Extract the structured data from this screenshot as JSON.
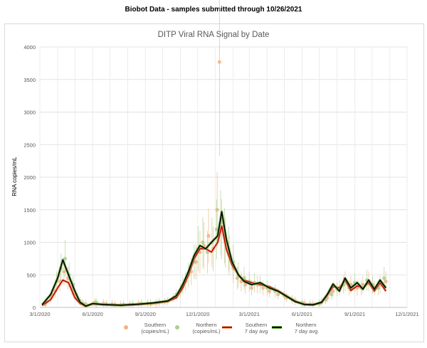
{
  "header": {
    "title": "Biobot Data - samples submitted through 10/26/2021"
  },
  "chart_data": {
    "type": "scatter",
    "title": "DITP Viral RNA Signal by Date",
    "ylabel": "RNA copies/mL",
    "xlabel": "",
    "ylim": [
      0,
      4000
    ],
    "yticks": [
      0,
      500,
      1000,
      1500,
      2000,
      2500,
      3000,
      3500,
      4000
    ],
    "xlim": [
      "2020-03-01",
      "2021-12-01"
    ],
    "xticks": [
      "3/1/2020",
      "6/1/2020",
      "9/1/2020",
      "12/1/2020",
      "3/1/2021",
      "6/1/2021",
      "9/1/2021",
      "12/1/2021"
    ],
    "grid": true,
    "legend": "bottom",
    "colors": {
      "southern_points": "#f4b183",
      "northern_points": "#a9d18e",
      "southern_avg": "#c00000",
      "northern_avg": "#000000",
      "southern_avg_glow": "#f4b183",
      "northern_avg_glow": "#70ad47"
    },
    "series": [
      {
        "name": "Southern (copies/mL)",
        "kind": "points",
        "x": [
          "2020-03-10",
          "2020-03-20",
          "2020-03-28",
          "2020-04-05",
          "2020-04-12",
          "2020-04-19",
          "2020-04-26",
          "2020-05-03",
          "2020-05-10",
          "2020-05-20",
          "2020-06-05",
          "2020-06-20",
          "2020-07-05",
          "2020-07-20",
          "2020-08-05",
          "2020-08-20",
          "2020-09-05",
          "2020-09-20",
          "2020-10-05",
          "2020-10-20",
          "2020-11-01",
          "2020-11-10",
          "2020-11-20",
          "2020-11-28",
          "2020-12-05",
          "2020-12-12",
          "2020-12-20",
          "2020-12-28",
          "2021-01-04",
          "2021-01-08",
          "2021-01-12",
          "2021-01-18",
          "2021-01-25",
          "2021-02-01",
          "2021-02-08",
          "2021-02-15",
          "2021-02-22",
          "2021-03-05",
          "2021-03-15",
          "2021-03-25",
          "2021-04-05",
          "2021-04-20",
          "2021-05-05",
          "2021-05-20",
          "2021-06-05",
          "2021-06-20",
          "2021-07-05",
          "2021-07-15",
          "2021-07-25",
          "2021-08-05",
          "2021-08-15",
          "2021-08-25",
          "2021-09-05",
          "2021-09-15",
          "2021-09-25",
          "2021-10-05",
          "2021-10-15",
          "2021-10-25"
        ],
        "values": [
          50,
          150,
          250,
          400,
          550,
          450,
          300,
          200,
          100,
          50,
          80,
          60,
          50,
          40,
          45,
          55,
          60,
          70,
          90,
          150,
          250,
          400,
          550,
          700,
          850,
          950,
          1100,
          900,
          1500,
          3770,
          1200,
          1000,
          800,
          600,
          450,
          400,
          350,
          300,
          350,
          300,
          250,
          200,
          150,
          100,
          60,
          50,
          80,
          150,
          250,
          300,
          400,
          350,
          300,
          350,
          400,
          300,
          350,
          400
        ]
      },
      {
        "name": "Northern (copies/mL)",
        "kind": "points",
        "x": [
          "2020-03-12",
          "2020-03-22",
          "2020-03-30",
          "2020-04-07",
          "2020-04-14",
          "2020-04-21",
          "2020-04-28",
          "2020-05-05",
          "2020-05-15",
          "2020-06-08",
          "2020-06-25",
          "2020-07-10",
          "2020-07-25",
          "2020-08-10",
          "2020-08-25",
          "2020-09-10",
          "2020-09-25",
          "2020-10-10",
          "2020-10-25",
          "2020-11-05",
          "2020-11-15",
          "2020-11-25",
          "2020-12-02",
          "2020-12-10",
          "2020-12-18",
          "2020-12-26",
          "2021-01-03",
          "2021-01-10",
          "2021-01-17",
          "2021-01-24",
          "2021-02-01",
          "2021-02-10",
          "2021-02-20",
          "2021-03-01",
          "2021-03-10",
          "2021-03-20",
          "2021-04-01",
          "2021-04-15",
          "2021-05-01",
          "2021-05-15",
          "2021-06-01",
          "2021-06-15",
          "2021-07-01",
          "2021-07-12",
          "2021-07-22",
          "2021-08-01",
          "2021-08-12",
          "2021-08-22",
          "2021-09-01",
          "2021-09-12",
          "2021-09-22",
          "2021-10-02",
          "2021-10-12",
          "2021-10-22"
        ],
        "values": [
          80,
          200,
          400,
          600,
          750,
          500,
          350,
          150,
          60,
          70,
          50,
          40,
          45,
          50,
          60,
          55,
          80,
          100,
          200,
          350,
          500,
          700,
          900,
          1000,
          850,
          1000,
          1200,
          1300,
          1100,
          900,
          700,
          500,
          450,
          400,
          380,
          350,
          300,
          250,
          180,
          120,
          70,
          50,
          60,
          120,
          200,
          280,
          350,
          300,
          380,
          300,
          420,
          350,
          300,
          450
        ]
      },
      {
        "name": "Southern 7 day avg",
        "kind": "line",
        "x": [
          "2020-03-05",
          "2020-03-20",
          "2020-04-01",
          "2020-04-10",
          "2020-04-20",
          "2020-05-01",
          "2020-05-10",
          "2020-05-20",
          "2020-06-01",
          "2020-06-20",
          "2020-07-20",
          "2020-08-20",
          "2020-09-15",
          "2020-10-10",
          "2020-10-25",
          "2020-11-05",
          "2020-11-15",
          "2020-11-25",
          "2020-12-05",
          "2020-12-15",
          "2020-12-25",
          "2021-01-05",
          "2021-01-12",
          "2021-01-20",
          "2021-01-30",
          "2021-02-10",
          "2021-02-20",
          "2021-03-05",
          "2021-03-20",
          "2021-04-05",
          "2021-04-20",
          "2021-05-05",
          "2021-05-20",
          "2021-06-05",
          "2021-06-20",
          "2021-07-05",
          "2021-07-15",
          "2021-07-25",
          "2021-08-05",
          "2021-08-15",
          "2021-08-25",
          "2021-09-05",
          "2021-09-15",
          "2021-09-25",
          "2021-10-05",
          "2021-10-15",
          "2021-10-25"
        ],
        "values": [
          30,
          120,
          300,
          420,
          380,
          150,
          60,
          20,
          50,
          40,
          30,
          45,
          60,
          90,
          150,
          300,
          500,
          750,
          900,
          900,
          850,
          1000,
          1250,
          900,
          650,
          500,
          420,
          380,
          350,
          320,
          260,
          180,
          100,
          50,
          40,
          70,
          180,
          320,
          300,
          420,
          260,
          330,
          300,
          380,
          250,
          380,
          250
        ]
      },
      {
        "name": "Northern 7 day avg",
        "kind": "line",
        "x": [
          "2020-03-05",
          "2020-03-20",
          "2020-04-01",
          "2020-04-10",
          "2020-04-20",
          "2020-05-01",
          "2020-05-10",
          "2020-05-20",
          "2020-06-01",
          "2020-06-20",
          "2020-07-20",
          "2020-08-20",
          "2020-09-15",
          "2020-10-10",
          "2020-10-25",
          "2020-11-05",
          "2020-11-15",
          "2020-11-25",
          "2020-12-05",
          "2020-12-15",
          "2020-12-25",
          "2021-01-05",
          "2021-01-12",
          "2021-01-20",
          "2021-01-30",
          "2021-02-10",
          "2021-02-20",
          "2021-03-05",
          "2021-03-20",
          "2021-04-05",
          "2021-04-20",
          "2021-05-05",
          "2021-05-20",
          "2021-06-05",
          "2021-06-20",
          "2021-07-05",
          "2021-07-15",
          "2021-07-25",
          "2021-08-05",
          "2021-08-15",
          "2021-08-25",
          "2021-09-05",
          "2021-09-15",
          "2021-09-25",
          "2021-10-05",
          "2021-10-15",
          "2021-10-25"
        ],
        "values": [
          40,
          200,
          450,
          730,
          500,
          250,
          80,
          20,
          60,
          45,
          35,
          50,
          70,
          100,
          180,
          350,
          550,
          800,
          950,
          900,
          1000,
          1100,
          1470,
          1050,
          700,
          500,
          400,
          350,
          380,
          300,
          250,
          170,
          90,
          45,
          40,
          80,
          200,
          360,
          250,
          450,
          300,
          380,
          280,
          420,
          280,
          420,
          300
        ]
      }
    ]
  },
  "legend": {
    "items": [
      {
        "label_line1": "Southern",
        "label_line2": "(copies/mL)"
      },
      {
        "label_line1": "Northern",
        "label_line2": "(copies/mL)"
      },
      {
        "label_line1": "Southern",
        "label_line2": "7 day avg"
      },
      {
        "label_line1": "Northern",
        "label_line2": "7 day avg"
      }
    ]
  }
}
